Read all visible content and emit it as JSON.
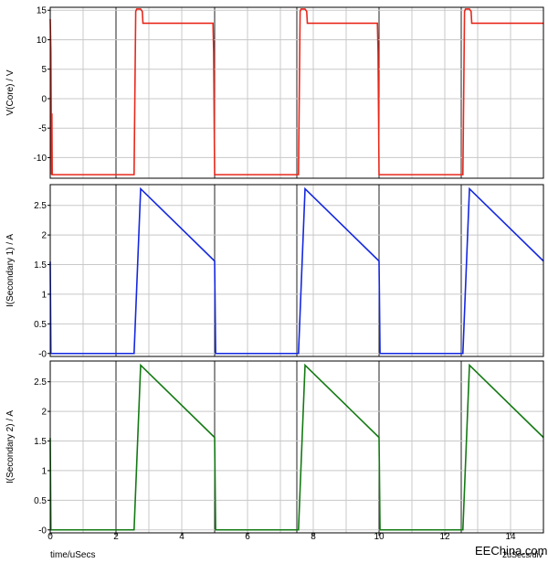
{
  "chart_data": [
    {
      "type": "line",
      "ylabel": "V(Core) / V",
      "ylim": [
        -13.5,
        15.5
      ],
      "yticks": [
        15,
        10,
        5,
        0,
        -5,
        -10
      ],
      "ytick_labels": [
        "15",
        "10",
        "5",
        "0",
        "-5",
        "-10"
      ],
      "grid": true,
      "series": [
        {
          "color": "#e8281c",
          "x": [
            0,
            0.02,
            0.04,
            0.05,
            0.06,
            0.08,
            0.1,
            2.55,
            2.6,
            2.63,
            2.75,
            2.8,
            2.82,
            2.84,
            4.95,
            4.97,
            5.0,
            5.02,
            7.55,
            7.6,
            7.63,
            7.75,
            7.8,
            7.82,
            7.84,
            9.95,
            9.97,
            10.0,
            10.02,
            12.55,
            12.6,
            12.63,
            12.75,
            12.8,
            12.82,
            12.84,
            15.0
          ],
          "y": [
            13.5,
            8,
            -12.9,
            -2.5,
            -12.9,
            -12.9,
            -12.9,
            -12.9,
            14.8,
            15.2,
            15.2,
            14.8,
            12.8,
            12.8,
            12.8,
            8,
            -12.9,
            -12.9,
            -12.9,
            14.8,
            15.2,
            15.2,
            14.8,
            12.8,
            12.8,
            12.8,
            8,
            -12.9,
            -12.9,
            -12.9,
            14.8,
            15.2,
            15.2,
            14.8,
            12.8,
            12.8,
            12.8
          ]
        }
      ]
    },
    {
      "type": "line",
      "ylabel": "I(Secondary 1) / A",
      "ylim": [
        -0.05,
        2.85
      ],
      "yticks": [
        2.5,
        2,
        1.5,
        1,
        0.5,
        0
      ],
      "ytick_labels": [
        "2.5",
        "2",
        "1.5",
        "1",
        "0.5",
        "-0"
      ],
      "grid": true,
      "series": [
        {
          "color": "#1428e0",
          "x": [
            0,
            0.02,
            0.05,
            2.55,
            2.75,
            5.0,
            5.03,
            7.55,
            7.75,
            10.0,
            10.03,
            12.55,
            12.75,
            15.0
          ],
          "y": [
            1.55,
            0.0,
            0.0,
            0.0,
            2.78,
            1.56,
            0.0,
            0.0,
            2.78,
            1.56,
            0.0,
            0.0,
            2.78,
            1.56
          ]
        }
      ]
    },
    {
      "type": "line",
      "ylabel": "I(Secondary 2) / A",
      "xlabel": "time/uSecs",
      "xlim": [
        0,
        15
      ],
      "xticks": [
        0,
        2,
        4,
        6,
        8,
        10,
        12,
        14
      ],
      "xtick_labels": [
        "0",
        "2",
        "4",
        "6",
        "8",
        "10",
        "12",
        "14"
      ],
      "x_annotation": "2uSecs/div",
      "ylim": [
        -0.05,
        2.85
      ],
      "yticks": [
        2.5,
        2,
        1.5,
        1,
        0.5,
        0
      ],
      "ytick_labels": [
        "2.5",
        "2",
        "1.5",
        "1",
        "0.5",
        "-0"
      ],
      "grid": true,
      "series": [
        {
          "color": "#137a13",
          "x": [
            0,
            0.02,
            0.05,
            2.55,
            2.75,
            5.0,
            5.03,
            7.55,
            7.75,
            10.0,
            10.03,
            12.55,
            12.75,
            15.0
          ],
          "y": [
            1.55,
            0.0,
            0.0,
            0.0,
            2.78,
            1.56,
            0.0,
            0.0,
            2.78,
            1.56,
            0.0,
            0.0,
            2.78,
            1.56
          ]
        }
      ]
    }
  ],
  "watermark": "EEChina.com"
}
